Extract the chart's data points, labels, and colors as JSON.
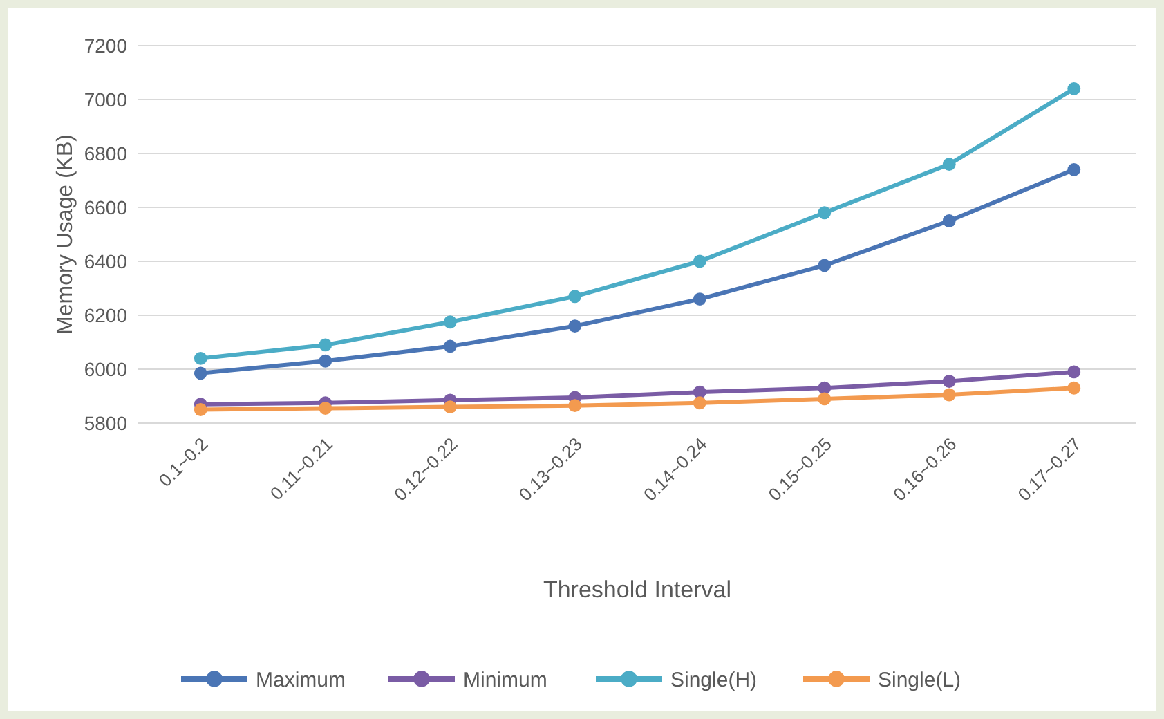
{
  "chart_data": {
    "type": "line",
    "xlabel": "Threshold Interval",
    "ylabel": "Memory Usage (KB)",
    "categories": [
      "0.1~0.2",
      "0.11~0.21",
      "0.12~0.22",
      "0.13~0.23",
      "0.14~0.24",
      "0.15~0.25",
      "0.16~0.26",
      "0.17~0.27"
    ],
    "series": [
      {
        "name": "Maximum",
        "color": "#4a75b5",
        "values": [
          5985,
          6030,
          6085,
          6160,
          6260,
          6385,
          6550,
          6740
        ]
      },
      {
        "name": "Minimum",
        "color": "#7a5ca5",
        "values": [
          5870,
          5875,
          5885,
          5895,
          5915,
          5930,
          5955,
          5990
        ]
      },
      {
        "name": "Single(H)",
        "color": "#4bacc6",
        "values": [
          6040,
          6090,
          6175,
          6270,
          6400,
          6580,
          6760,
          7040
        ]
      },
      {
        "name": "Single(L)",
        "color": "#f39a4f",
        "values": [
          5850,
          5855,
          5860,
          5865,
          5875,
          5890,
          5905,
          5930
        ]
      }
    ],
    "ylim": [
      5800,
      7200
    ],
    "yticks": [
      5800,
      6000,
      6200,
      6400,
      6600,
      6800,
      7000,
      7200
    ],
    "grid": "y",
    "legend": "bottom",
    "marker": "circle",
    "line_style": "solid"
  }
}
